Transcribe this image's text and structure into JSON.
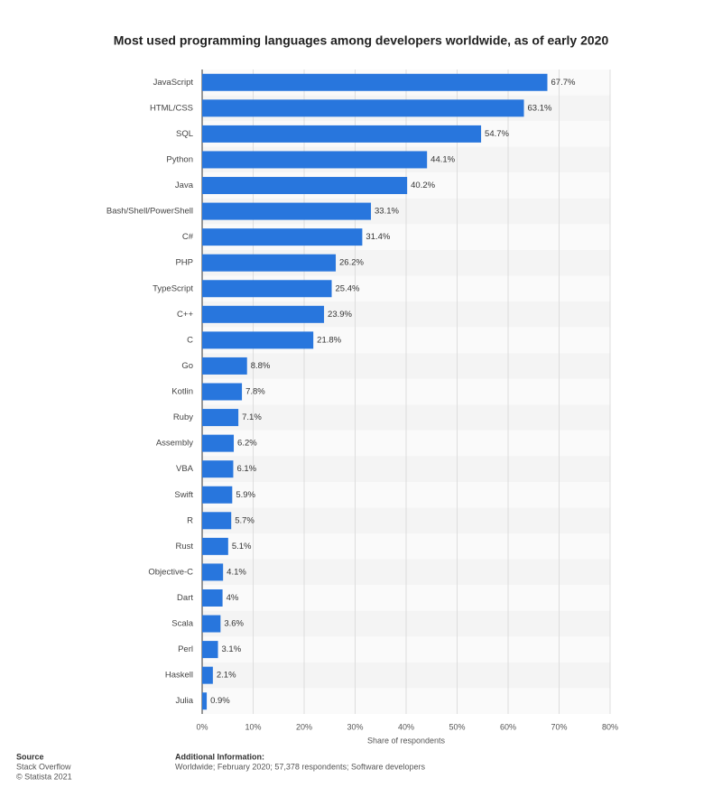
{
  "chart_data": {
    "type": "bar",
    "orientation": "horizontal",
    "title": "Most used programming languages among developers worldwide, as of early 2020",
    "x_label": "Share of respondents",
    "categories": [
      "JavaScript",
      "HTML/CSS",
      "SQL",
      "Python",
      "Java",
      "Bash/Shell/PowerShell",
      "C#",
      "PHP",
      "TypeScript",
      "C++",
      "C",
      "Go",
      "Kotlin",
      "Ruby",
      "Assembly",
      "VBA",
      "Swift",
      "R",
      "Rust",
      "Objective-C",
      "Dart",
      "Scala",
      "Perl",
      "Haskell",
      "Julia"
    ],
    "values": [
      67.7,
      63.1,
      54.7,
      44.1,
      40.2,
      33.1,
      31.4,
      26.2,
      25.4,
      23.9,
      21.8,
      8.8,
      7.8,
      7.1,
      6.2,
      6.1,
      5.9,
      5.7,
      5.1,
      4.1,
      4,
      3.6,
      3.1,
      2.1,
      0.9
    ],
    "value_labels": [
      "67.7%",
      "63.1%",
      "54.7%",
      "44.1%",
      "40.2%",
      "33.1%",
      "31.4%",
      "26.2%",
      "25.4%",
      "23.9%",
      "21.8%",
      "8.8%",
      "7.8%",
      "7.1%",
      "6.2%",
      "6.1%",
      "5.9%",
      "5.7%",
      "5.1%",
      "4.1%",
      "4%",
      "3.6%",
      "3.1%",
      "2.1%",
      "0.9%"
    ],
    "color": "#2876dd",
    "xlim": [
      0,
      80
    ],
    "xticks": [
      {
        "value": 0,
        "label": "0%"
      },
      {
        "value": 10,
        "label": "10%"
      },
      {
        "value": 20,
        "label": "20%"
      },
      {
        "value": 30,
        "label": "30%"
      },
      {
        "value": 40,
        "label": "40%"
      },
      {
        "value": 50,
        "label": "50%"
      },
      {
        "value": 60,
        "label": "60%"
      },
      {
        "value": 70,
        "label": "70%"
      },
      {
        "value": 80,
        "label": "80%"
      }
    ],
    "grid": true
  },
  "footer": {
    "source_heading": "Source",
    "source": "Stack Overflow",
    "copyright": "© Statista 2021",
    "info_heading": "Additional Information:",
    "info": "Worldwide; February 2020; 57,378 respondents; Software developers"
  }
}
